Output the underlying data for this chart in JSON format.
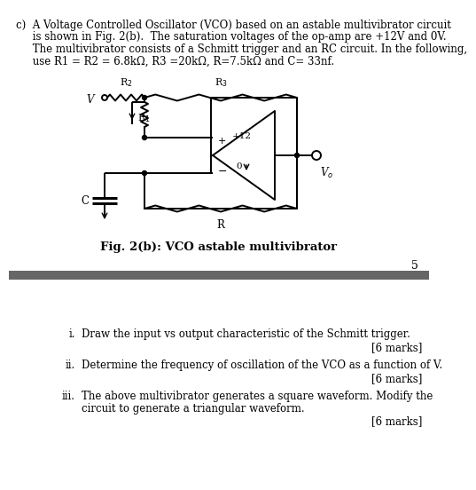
{
  "text_lines": [
    "c)  A Voltage Controlled Oscillator (VCO) based on an astable multivibrator circuit",
    "     is shown in Fig. 2(b).  The saturation voltages of the op-amp are +12V and 0V.",
    "     The multivibrator consists of a Schmitt trigger and an RC circuit. In the following,",
    "     use R1 = R2 = 6.8kΩ, R3 =20kΩ, R=7.5kΩ and C= 33nf."
  ],
  "fig_caption": "Fig. 2(b): VCO astable multivibrator",
  "page_number": "5",
  "items": [
    {
      "label": "i.",
      "text": "Draw the input vs output characteristic of the Schmitt trigger.",
      "marks": "[6 marks]"
    },
    {
      "label": "ii.",
      "text": "Determine the frequency of oscillation of the VCO as a function of V.",
      "marks": "[6 marks]"
    },
    {
      "label": "iii.",
      "text1": "The above multivibrator generates a square waveform. Modify the",
      "text2": "circuit to generate a triangular waveform.",
      "marks": "[6 marks]"
    }
  ],
  "divider_color": "#666666",
  "text_color": "#000000",
  "font_size_body": 8.5,
  "font_size_caption": 9.5,
  "lw": 1.4
}
